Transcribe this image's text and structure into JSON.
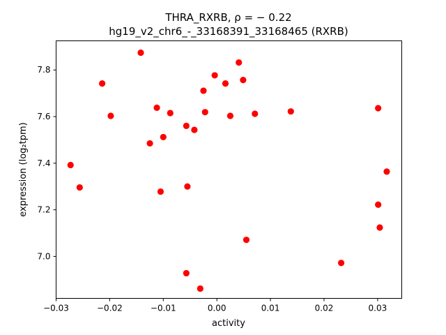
{
  "chart_data": {
    "type": "scatter",
    "title_line1": "THRA_RXRB, ρ = − 0.22",
    "title_line2": "hg19_v2_chr6_-_33168391_33168465 (RXRB)",
    "xlabel": "activity",
    "ylabel": "expression (log₂tpm)",
    "xlim": [
      -0.03,
      0.0345
    ],
    "ylim": [
      6.82,
      7.925
    ],
    "xticks": [
      -0.03,
      -0.02,
      -0.01,
      0.0,
      0.01,
      0.02,
      0.03
    ],
    "xtick_labels": [
      "−0.03",
      "−0.02",
      "−0.01",
      "0.00",
      "0.01",
      "0.02",
      "0.03"
    ],
    "yticks": [
      7.0,
      7.2,
      7.4,
      7.6,
      7.8
    ],
    "ytick_labels": [
      "7.0",
      "7.2",
      "7.4",
      "7.6",
      "7.8"
    ],
    "marker_color": "#ff0000",
    "points": [
      {
        "x": -0.0273,
        "y": 7.392
      },
      {
        "x": -0.0256,
        "y": 7.296
      },
      {
        "x": -0.0214,
        "y": 7.742
      },
      {
        "x": -0.0198,
        "y": 7.603
      },
      {
        "x": -0.0142,
        "y": 7.874
      },
      {
        "x": -0.0125,
        "y": 7.485
      },
      {
        "x": -0.0112,
        "y": 7.638
      },
      {
        "x": -0.0105,
        "y": 7.278
      },
      {
        "x": -0.01,
        "y": 7.512
      },
      {
        "x": -0.0087,
        "y": 7.615
      },
      {
        "x": -0.0057,
        "y": 7.56
      },
      {
        "x": -0.0055,
        "y": 7.3
      },
      {
        "x": -0.0057,
        "y": 6.928
      },
      {
        "x": -0.0042,
        "y": 7.543
      },
      {
        "x": -0.0031,
        "y": 6.862
      },
      {
        "x": -0.0025,
        "y": 7.711
      },
      {
        "x": -0.0022,
        "y": 7.619
      },
      {
        "x": -0.0004,
        "y": 7.777
      },
      {
        "x": 0.0016,
        "y": 7.742
      },
      {
        "x": 0.0025,
        "y": 7.603
      },
      {
        "x": 0.0041,
        "y": 7.832
      },
      {
        "x": 0.0049,
        "y": 7.757
      },
      {
        "x": 0.0055,
        "y": 7.071
      },
      {
        "x": 0.0071,
        "y": 7.612
      },
      {
        "x": 0.0138,
        "y": 7.622
      },
      {
        "x": 0.0232,
        "y": 6.972
      },
      {
        "x": 0.0301,
        "y": 7.636
      },
      {
        "x": 0.0301,
        "y": 7.222
      },
      {
        "x": 0.0304,
        "y": 7.124
      },
      {
        "x": 0.0317,
        "y": 7.364
      }
    ]
  }
}
